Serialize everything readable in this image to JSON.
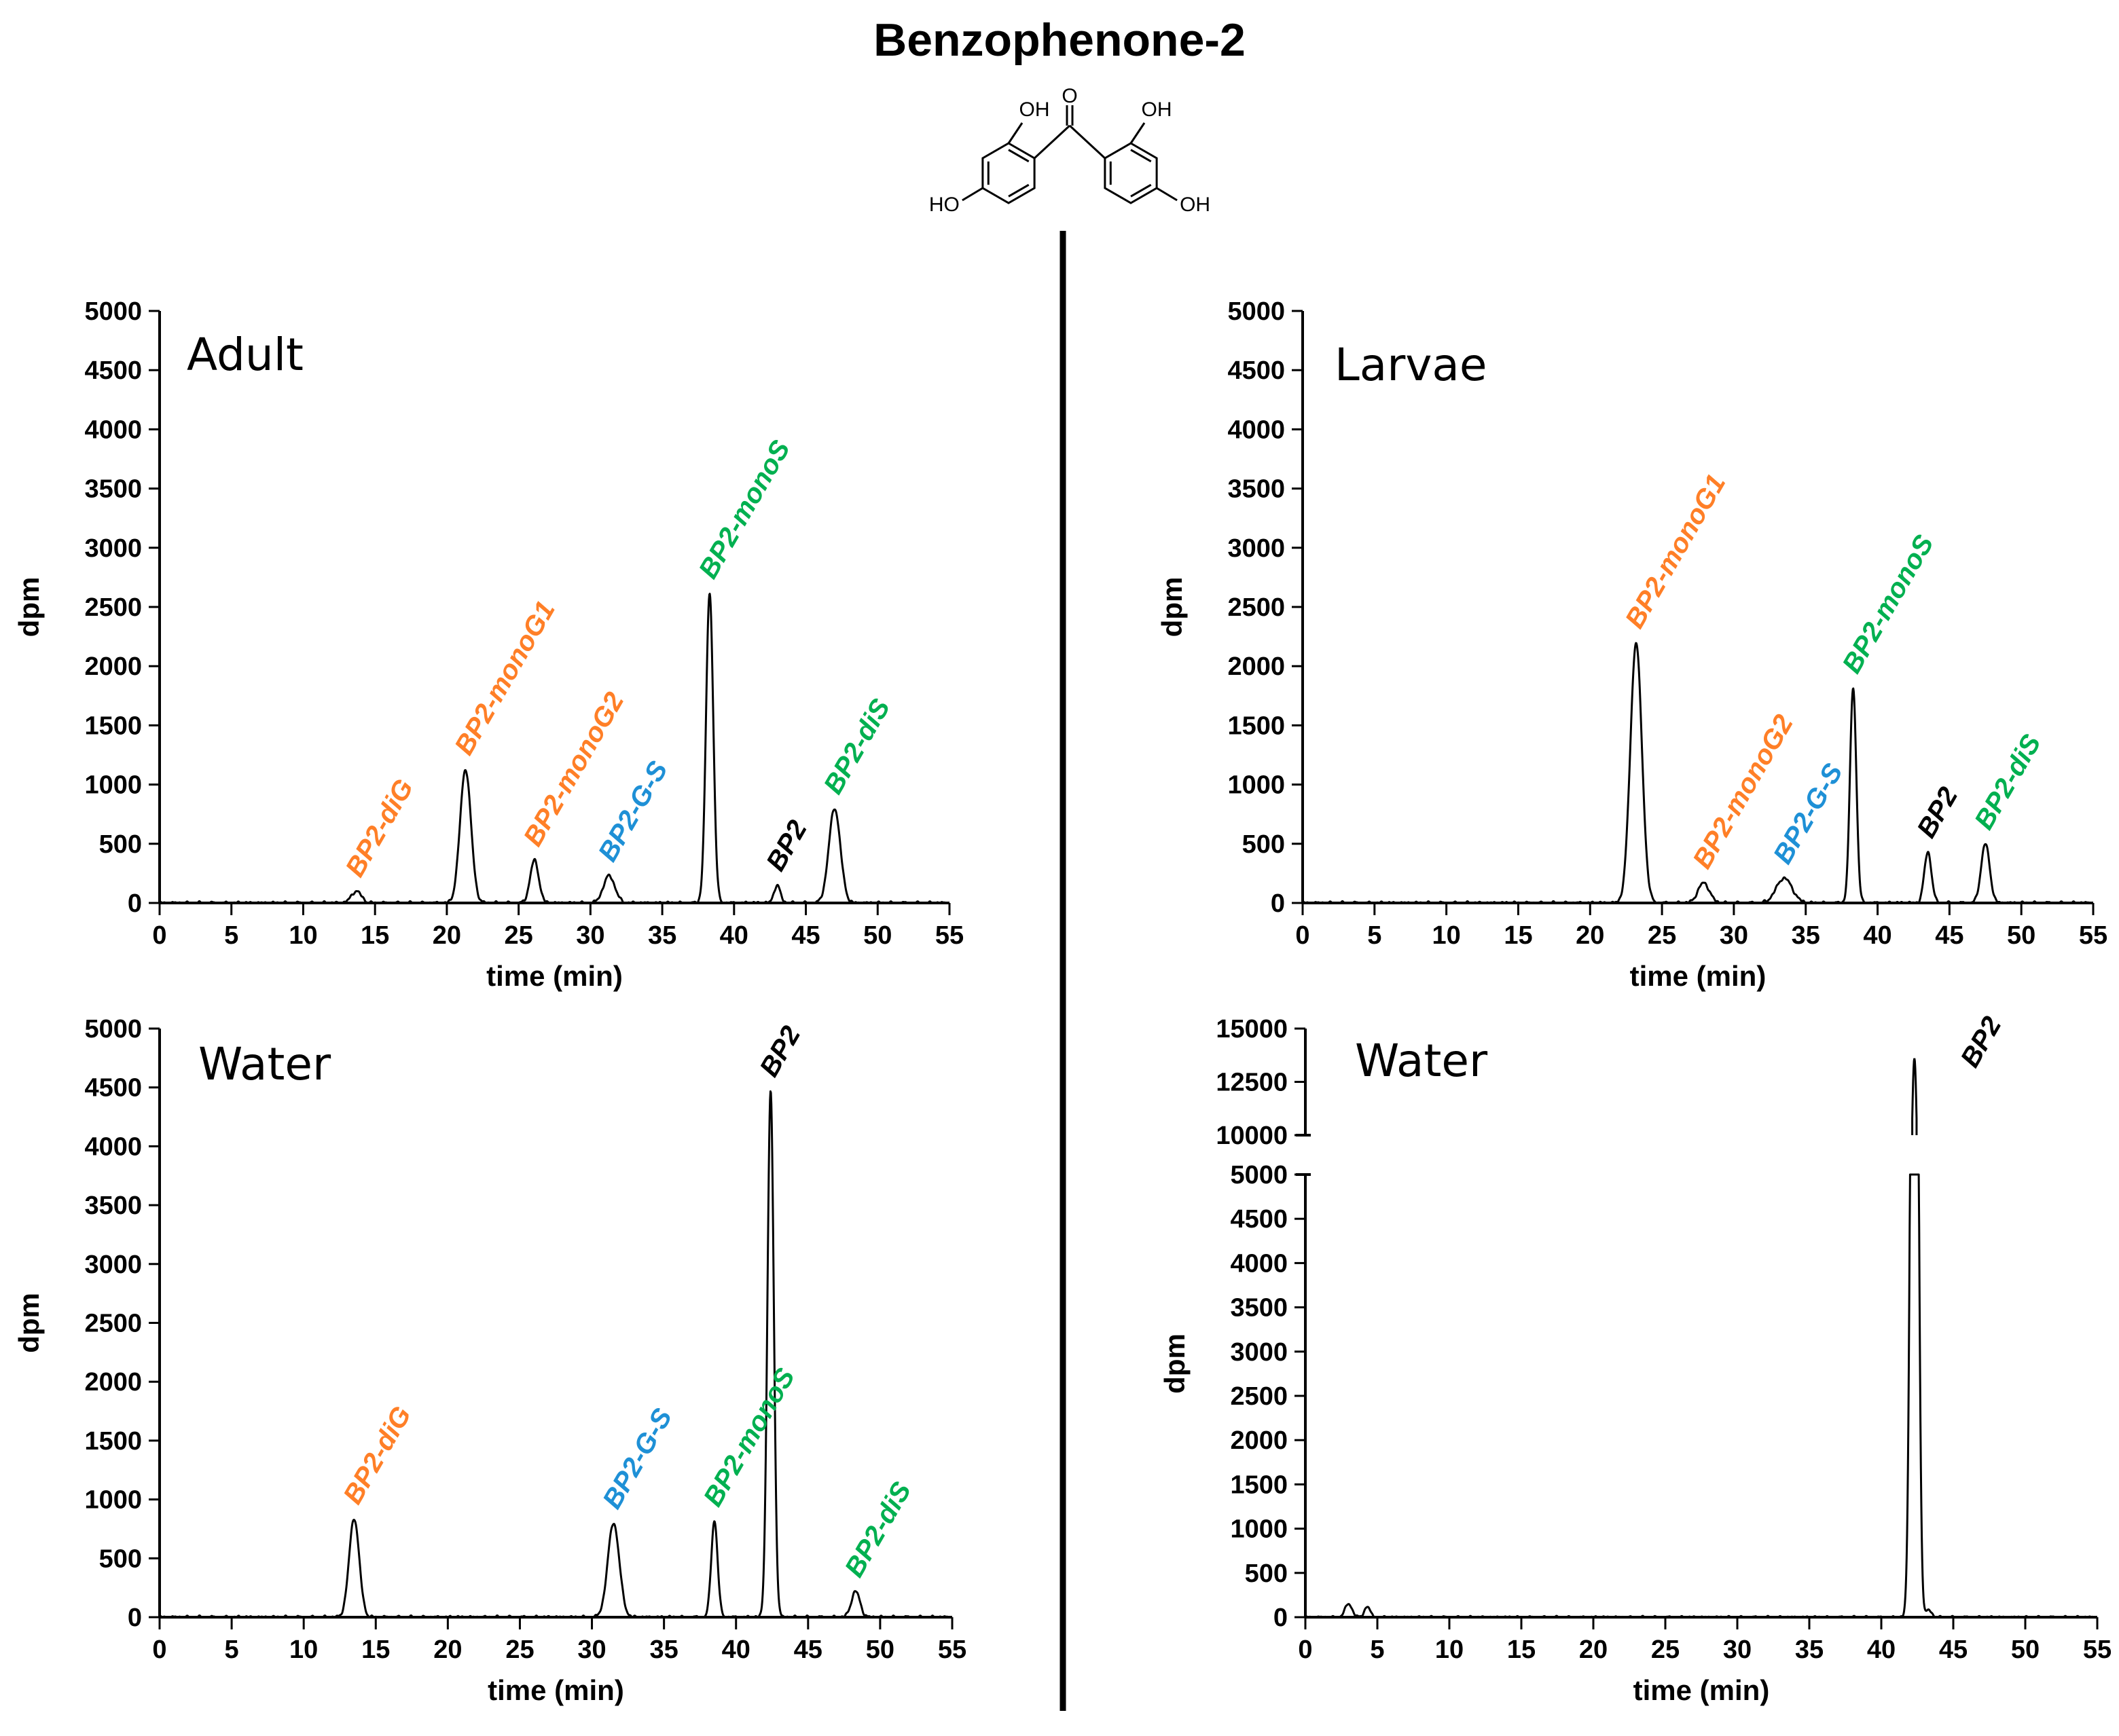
{
  "title": "Benzophenone-2",
  "molecule": {
    "name": "2,2',4,4'-tetrahydroxybenzophenone",
    "labels": [
      "OH",
      "O",
      "OH",
      "HO",
      "OH"
    ]
  },
  "colors": {
    "orange": "#ff7f27",
    "blue": "#1e90d6",
    "green": "#00b050",
    "black": "#000000"
  },
  "chart_data": [
    {
      "type": "line",
      "panel_label": "Adult",
      "xlabel": "time (min)",
      "ylabel": "dpm",
      "xlim": [
        0,
        55
      ],
      "ylim": [
        0,
        5000
      ],
      "xticks": [
        0,
        5,
        10,
        15,
        20,
        25,
        30,
        35,
        40,
        45,
        50,
        55
      ],
      "yticks": [
        0,
        500,
        1000,
        1500,
        2000,
        2500,
        3000,
        3500,
        4000,
        4500,
        5000
      ],
      "peaks": [
        {
          "label": "BP2-diG",
          "time": 13.7,
          "dpm": 100,
          "width": 0.35,
          "color": "orange"
        },
        {
          "label": "BP2-monoG1",
          "time": 21.3,
          "dpm": 1130,
          "width": 0.38,
          "color": "orange"
        },
        {
          "label": "BP2-monoG2",
          "time": 26.1,
          "dpm": 360,
          "width": 0.3,
          "color": "orange"
        },
        {
          "label": "BP2-G-S",
          "time": 31.3,
          "dpm": 230,
          "width": 0.4,
          "color": "blue"
        },
        {
          "label": "BP2-monoS",
          "time": 38.3,
          "dpm": 2620,
          "width": 0.25,
          "color": "green"
        },
        {
          "label": "BP2",
          "time": 43.0,
          "dpm": 150,
          "width": 0.22,
          "color": "black"
        },
        {
          "label": "BP2-diS",
          "time": 47.0,
          "dpm": 800,
          "width": 0.4,
          "color": "green"
        }
      ]
    },
    {
      "type": "line",
      "panel_label": "Larvae",
      "xlabel": "time (min)",
      "ylabel": "dpm",
      "xlim": [
        0,
        55
      ],
      "ylim": [
        0,
        5000
      ],
      "xticks": [
        0,
        5,
        10,
        15,
        20,
        25,
        30,
        35,
        40,
        45,
        50,
        55
      ],
      "yticks": [
        0,
        500,
        1000,
        1500,
        2000,
        2500,
        3000,
        3500,
        4000,
        4500,
        5000
      ],
      "peaks": [
        {
          "label": "BP2-monoG1",
          "time": 23.2,
          "dpm": 2200,
          "width": 0.4,
          "color": "orange"
        },
        {
          "label": "BP2-monoG2",
          "time": 27.9,
          "dpm": 170,
          "width": 0.4,
          "color": "orange"
        },
        {
          "label": "BP2-G-S",
          "time": 33.5,
          "dpm": 210,
          "width": 0.55,
          "color": "blue"
        },
        {
          "label": "BP2-monoS",
          "time": 38.3,
          "dpm": 1820,
          "width": 0.22,
          "color": "green"
        },
        {
          "label": "BP2",
          "time": 43.5,
          "dpm": 430,
          "width": 0.25,
          "color": "black"
        },
        {
          "label": "BP2-diS",
          "time": 47.5,
          "dpm": 500,
          "width": 0.3,
          "color": "green"
        }
      ]
    },
    {
      "type": "line",
      "panel_label": "Water",
      "xlabel": "time (min)",
      "ylabel": "dpm",
      "xlim": [
        0,
        55
      ],
      "ylim": [
        0,
        5000
      ],
      "xticks": [
        0,
        5,
        10,
        15,
        20,
        25,
        30,
        35,
        40,
        45,
        50,
        55
      ],
      "yticks": [
        0,
        500,
        1000,
        1500,
        2000,
        2500,
        3000,
        3500,
        4000,
        4500,
        5000
      ],
      "peaks": [
        {
          "label": "BP2-diG",
          "time": 13.5,
          "dpm": 840,
          "width": 0.35,
          "color": "orange"
        },
        {
          "label": "BP2-G-S",
          "time": 31.5,
          "dpm": 800,
          "width": 0.4,
          "color": "blue"
        },
        {
          "label": "BP2-monoS",
          "time": 38.5,
          "dpm": 820,
          "width": 0.22,
          "color": "green"
        },
        {
          "label": "BP2",
          "time": 42.4,
          "dpm": 4470,
          "width": 0.22,
          "color": "black"
        },
        {
          "label": "BP2-diS",
          "time": 48.3,
          "dpm": 220,
          "width": 0.3,
          "color": "green"
        }
      ]
    },
    {
      "type": "line",
      "panel_label": "Water",
      "xlabel": "time (min)",
      "ylabel": "dpm",
      "xlim": [
        0,
        55
      ],
      "ylim": [
        0,
        15000
      ],
      "axis_break": [
        5000,
        10000
      ],
      "xticks": [
        0,
        5,
        10,
        15,
        20,
        25,
        30,
        35,
        40,
        45,
        50,
        55
      ],
      "yticks": [
        0,
        500,
        1000,
        1500,
        2000,
        2500,
        3000,
        3500,
        4000,
        4500,
        5000
      ],
      "yticks_upper": [
        10000,
        12500,
        15000
      ],
      "peaks": [
        {
          "label": "",
          "time": 3.0,
          "dpm": 150,
          "width": 0.25,
          "color": "black"
        },
        {
          "label": "",
          "time": 4.3,
          "dpm": 120,
          "width": 0.2,
          "color": "black"
        },
        {
          "label": "BP2",
          "time": 42.3,
          "dpm": 13600,
          "width": 0.22,
          "color": "black"
        },
        {
          "label": "",
          "time": 43.3,
          "dpm": 80,
          "width": 0.2,
          "color": "black"
        }
      ]
    }
  ]
}
